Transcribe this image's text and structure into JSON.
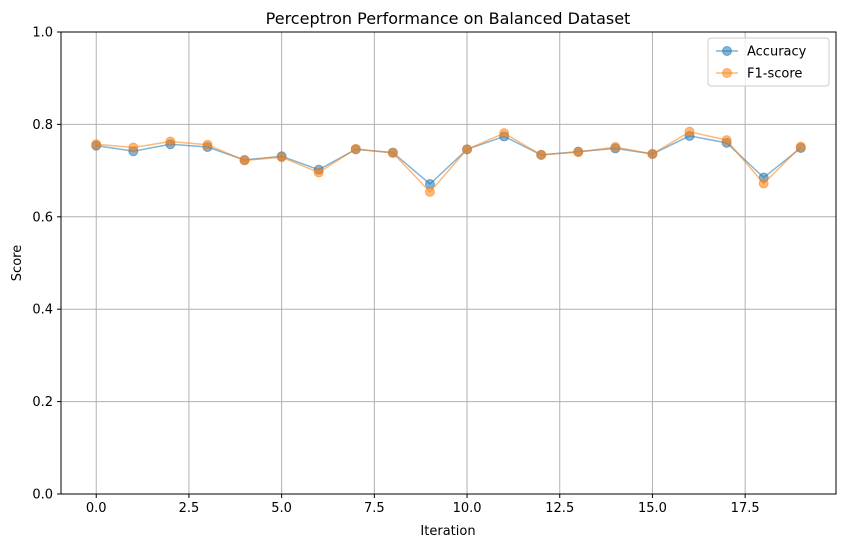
{
  "chart_data": {
    "type": "line",
    "title": "Perceptron Performance on Balanced Dataset",
    "xlabel": "Iteration",
    "ylabel": "Score",
    "xlim": [
      -0.95,
      19.95
    ],
    "ylim": [
      0.0,
      1.0
    ],
    "xticks": [
      0.0,
      2.5,
      5.0,
      7.5,
      10.0,
      12.5,
      15.0,
      17.5
    ],
    "xtick_labels": [
      "0.0",
      "2.5",
      "5.0",
      "7.5",
      "10.0",
      "12.5",
      "15.0",
      "17.5"
    ],
    "yticks": [
      0.0,
      0.2,
      0.4,
      0.6,
      0.8,
      1.0
    ],
    "ytick_labels": [
      "0.0",
      "0.2",
      "0.4",
      "0.6",
      "0.8",
      "1.0"
    ],
    "grid": true,
    "legend_position": "top-right",
    "x": [
      0,
      1,
      2,
      3,
      4,
      5,
      6,
      7,
      8,
      9,
      10,
      11,
      12,
      13,
      14,
      15,
      16,
      17,
      18,
      19
    ],
    "series": [
      {
        "name": "Accuracy",
        "color": "#1f77b4",
        "values": [
          0.754,
          0.742,
          0.757,
          0.751,
          0.723,
          0.731,
          0.702,
          0.746,
          0.739,
          0.671,
          0.746,
          0.774,
          0.734,
          0.741,
          0.748,
          0.736,
          0.775,
          0.76,
          0.685,
          0.749
        ]
      },
      {
        "name": "F1-score",
        "color": "#ff7f0e",
        "values": [
          0.757,
          0.75,
          0.763,
          0.756,
          0.722,
          0.729,
          0.696,
          0.747,
          0.738,
          0.654,
          0.746,
          0.781,
          0.734,
          0.74,
          0.751,
          0.736,
          0.784,
          0.766,
          0.672,
          0.752
        ]
      }
    ]
  }
}
